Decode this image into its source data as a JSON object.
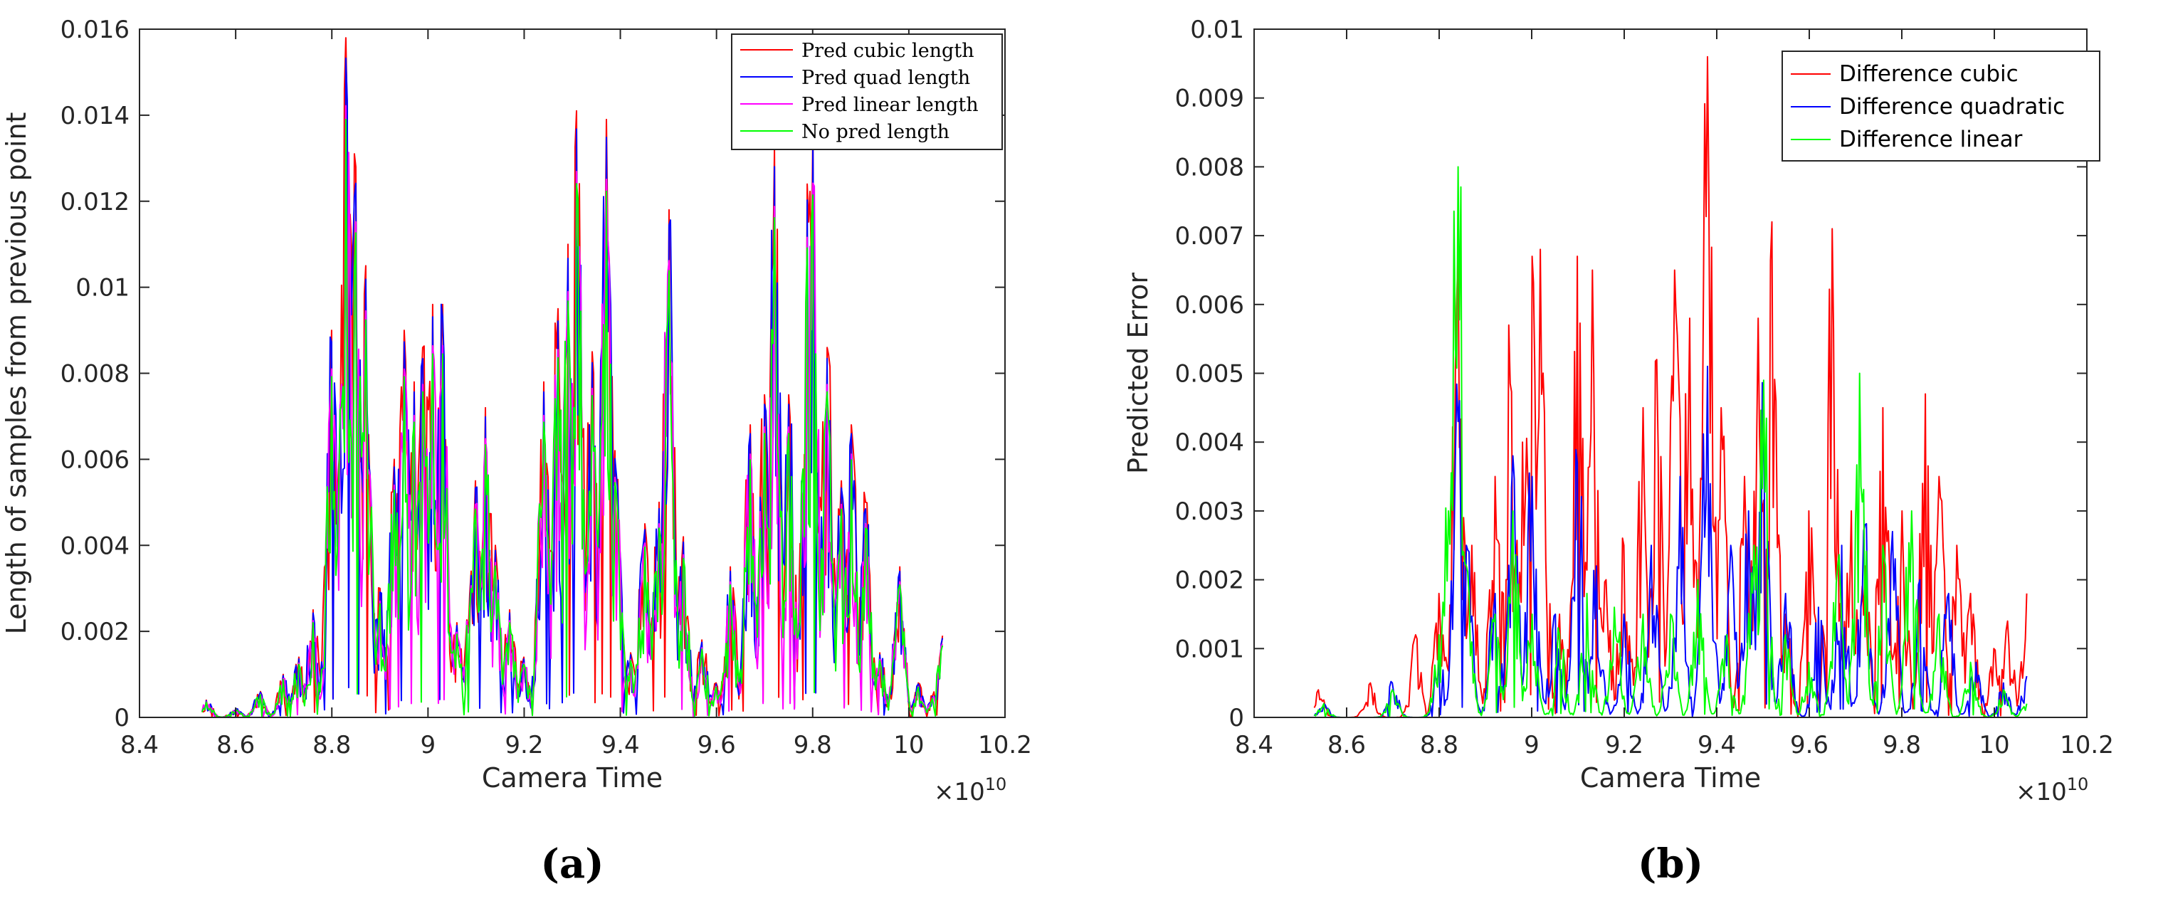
{
  "figure": {
    "caption_a": "(a)",
    "caption_b": "(b)"
  },
  "chart_data": [
    {
      "type": "line",
      "panel": "a",
      "title": "",
      "xlabel": "Camera Time",
      "ylabel": "Length of samples from previous point",
      "x_exponent": "×10",
      "x_exponent_power": "10",
      "xlim": [
        8.4,
        10.2
      ],
      "ylim": [
        0,
        0.016
      ],
      "xticks": [
        8.4,
        8.6,
        8.8,
        9,
        9.2,
        9.4,
        9.6,
        9.8,
        10,
        10.2
      ],
      "xtick_labels": [
        "8.4",
        "8.6",
        "8.8",
        "9",
        "9.2",
        "9.4",
        "9.6",
        "9.8",
        "10",
        "10.2"
      ],
      "yticks": [
        0,
        0.002,
        0.004,
        0.006,
        0.008,
        0.01,
        0.012,
        0.014,
        0.016
      ],
      "ytick_labels": [
        "0",
        "0.002",
        "0.004",
        "0.006",
        "0.008",
        "0.01",
        "0.012",
        "0.014",
        "0.016"
      ],
      "grid": false,
      "legend_position": "top-right",
      "x_range": [
        8.53,
        10.07
      ],
      "peaks": [
        [
          8.54,
          0.0004
        ],
        [
          8.6,
          0.0002
        ],
        [
          8.65,
          0.0006
        ],
        [
          8.7,
          0.001
        ],
        [
          8.73,
          0.0014
        ],
        [
          8.76,
          0.0025
        ],
        [
          8.8,
          0.009
        ],
        [
          8.83,
          0.0158
        ],
        [
          8.85,
          0.0128
        ],
        [
          8.87,
          0.0105
        ],
        [
          8.9,
          0.003
        ],
        [
          8.93,
          0.006
        ],
        [
          8.95,
          0.009
        ],
        [
          8.97,
          0.0078
        ],
        [
          8.99,
          0.0086
        ],
        [
          9.01,
          0.0096
        ],
        [
          9.03,
          0.0096
        ],
        [
          9.06,
          0.0022
        ],
        [
          9.09,
          0.0034
        ],
        [
          9.1,
          0.0055
        ],
        [
          9.12,
          0.0072
        ],
        [
          9.14,
          0.004
        ],
        [
          9.17,
          0.0025
        ],
        [
          9.2,
          0.0014
        ],
        [
          9.24,
          0.0078
        ],
        [
          9.27,
          0.0095
        ],
        [
          9.29,
          0.011
        ],
        [
          9.31,
          0.0141
        ],
        [
          9.34,
          0.0085
        ],
        [
          9.37,
          0.0139
        ],
        [
          9.39,
          0.0062
        ],
        [
          9.42,
          0.0015
        ],
        [
          9.45,
          0.0045
        ],
        [
          9.48,
          0.005
        ],
        [
          9.5,
          0.0118
        ],
        [
          9.53,
          0.0042
        ],
        [
          9.57,
          0.0018
        ],
        [
          9.6,
          0.0008
        ],
        [
          9.63,
          0.0035
        ],
        [
          9.67,
          0.0068
        ],
        [
          9.7,
          0.0075
        ],
        [
          9.72,
          0.0132
        ],
        [
          9.75,
          0.0075
        ],
        [
          9.79,
          0.0124
        ],
        [
          9.8,
          0.0138
        ],
        [
          9.83,
          0.0086
        ],
        [
          9.86,
          0.0055
        ],
        [
          9.88,
          0.0068
        ],
        [
          9.91,
          0.005
        ],
        [
          9.94,
          0.0015
        ],
        [
          9.98,
          0.0035
        ],
        [
          10.02,
          0.0008
        ],
        [
          10.05,
          0.0005
        ],
        [
          10.07,
          0.0019
        ]
      ],
      "series": [
        {
          "name": "Pred cubic length",
          "color": "#ff0000",
          "scale": 1.0,
          "jitter": 0.16,
          "seed": 11
        },
        {
          "name": "Pred quad length",
          "color": "#0000ff",
          "scale": 0.97,
          "jitter": 0.14,
          "seed": 23
        },
        {
          "name": "Pred linear length",
          "color": "#ff00ff",
          "scale": 0.9,
          "jitter": 0.1,
          "seed": 37
        },
        {
          "name": "No pred length",
          "color": "#00ff00",
          "scale": 0.88,
          "jitter": 0.09,
          "seed": 51
        }
      ]
    },
    {
      "type": "line",
      "panel": "b",
      "title": "",
      "xlabel": "Camera Time",
      "ylabel": "Predicted Error",
      "x_exponent": "×10",
      "x_exponent_power": "10",
      "xlim": [
        8.4,
        10.2
      ],
      "ylim": [
        0,
        0.01
      ],
      "xticks": [
        8.4,
        8.6,
        8.8,
        9,
        9.2,
        9.4,
        9.6,
        9.8,
        10,
        10.2
      ],
      "xtick_labels": [
        "8.4",
        "8.6",
        "8.8",
        "9",
        "9.2",
        "9.4",
        "9.6",
        "9.8",
        "10",
        "10.2"
      ],
      "yticks": [
        0,
        0.001,
        0.002,
        0.003,
        0.004,
        0.005,
        0.006,
        0.007,
        0.008,
        0.009,
        0.01
      ],
      "ytick_labels": [
        "0",
        "0.001",
        "0.002",
        "0.003",
        "0.004",
        "0.005",
        "0.006",
        "0.007",
        "0.008",
        "0.009",
        "0.01"
      ],
      "grid": false,
      "legend_position": "top-right",
      "x_range": [
        8.53,
        10.07
      ],
      "series": [
        {
          "name": "Difference cubic",
          "color": "#ff0000",
          "jitter": 0.15,
          "seed": 71,
          "peaks": [
            [
              8.54,
              0.0004
            ],
            [
              8.65,
              0.0005
            ],
            [
              8.75,
              0.0012
            ],
            [
              8.8,
              0.0018
            ],
            [
              8.84,
              0.0068
            ],
            [
              8.87,
              0.0025
            ],
            [
              8.92,
              0.0035
            ],
            [
              8.95,
              0.0057
            ],
            [
              8.98,
              0.004
            ],
            [
              9.0,
              0.0067
            ],
            [
              9.02,
              0.0068
            ],
            [
              9.06,
              0.0015
            ],
            [
              9.1,
              0.0067
            ],
            [
              9.13,
              0.0065
            ],
            [
              9.16,
              0.002
            ],
            [
              9.2,
              0.0025
            ],
            [
              9.24,
              0.0045
            ],
            [
              9.27,
              0.0052
            ],
            [
              9.31,
              0.0065
            ],
            [
              9.34,
              0.0058
            ],
            [
              9.38,
              0.0096
            ],
            [
              9.41,
              0.0045
            ],
            [
              9.46,
              0.0035
            ],
            [
              9.49,
              0.0058
            ],
            [
              9.52,
              0.0072
            ],
            [
              9.55,
              0.0015
            ],
            [
              9.6,
              0.003
            ],
            [
              9.65,
              0.0071
            ],
            [
              9.69,
              0.003
            ],
            [
              9.72,
              0.0022
            ],
            [
              9.76,
              0.0045
            ],
            [
              9.8,
              0.003
            ],
            [
              9.85,
              0.0047
            ],
            [
              9.88,
              0.0035
            ],
            [
              9.92,
              0.0025
            ],
            [
              9.95,
              0.0018
            ],
            [
              10.0,
              0.001
            ],
            [
              10.03,
              0.0014
            ],
            [
              10.07,
              0.0018
            ]
          ]
        },
        {
          "name": "Difference quadratic",
          "color": "#0000ff",
          "jitter": 0.2,
          "seed": 83,
          "peaks": [
            [
              8.55,
              0.0002
            ],
            [
              8.7,
              0.0005
            ],
            [
              8.8,
              0.0008
            ],
            [
              8.84,
              0.0043
            ],
            [
              8.86,
              0.0025
            ],
            [
              8.92,
              0.0018
            ],
            [
              8.96,
              0.0038
            ],
            [
              9.0,
              0.0035
            ],
            [
              9.05,
              0.0015
            ],
            [
              9.1,
              0.0037
            ],
            [
              9.14,
              0.0022
            ],
            [
              9.2,
              0.0015
            ],
            [
              9.26,
              0.0025
            ],
            [
              9.32,
              0.0035
            ],
            [
              9.38,
              0.0051
            ],
            [
              9.43,
              0.0025
            ],
            [
              9.47,
              0.003
            ],
            [
              9.5,
              0.0048
            ],
            [
              9.55,
              0.0018
            ],
            [
              9.62,
              0.0016
            ],
            [
              9.67,
              0.0025
            ],
            [
              9.72,
              0.0028
            ],
            [
              9.78,
              0.0027
            ],
            [
              9.84,
              0.002
            ],
            [
              9.9,
              0.0018
            ],
            [
              9.96,
              0.0008
            ],
            [
              10.02,
              0.0005
            ],
            [
              10.07,
              0.0006
            ]
          ]
        },
        {
          "name": "Difference linear",
          "color": "#00ff00",
          "jitter": 0.25,
          "seed": 97,
          "peaks": [
            [
              8.55,
              0.0002
            ],
            [
              8.7,
              0.0004
            ],
            [
              8.8,
              0.0012
            ],
            [
              8.82,
              0.003
            ],
            [
              8.84,
              0.008
            ],
            [
              8.86,
              0.0022
            ],
            [
              8.92,
              0.0015
            ],
            [
              8.96,
              0.003
            ],
            [
              9.0,
              0.0015
            ],
            [
              9.06,
              0.0012
            ],
            [
              9.12,
              0.0018
            ],
            [
              9.18,
              0.0016
            ],
            [
              9.24,
              0.0015
            ],
            [
              9.3,
              0.0015
            ],
            [
              9.36,
              0.002
            ],
            [
              9.42,
              0.0012
            ],
            [
              9.48,
              0.0025
            ],
            [
              9.5,
              0.0049
            ],
            [
              9.55,
              0.0012
            ],
            [
              9.6,
              0.0008
            ],
            [
              9.66,
              0.0022
            ],
            [
              9.71,
              0.005
            ],
            [
              9.76,
              0.0025
            ],
            [
              9.82,
              0.003
            ],
            [
              9.88,
              0.0015
            ],
            [
              9.95,
              0.0008
            ],
            [
              10.02,
              0.0004
            ],
            [
              10.07,
              0.0002
            ]
          ]
        }
      ]
    }
  ]
}
